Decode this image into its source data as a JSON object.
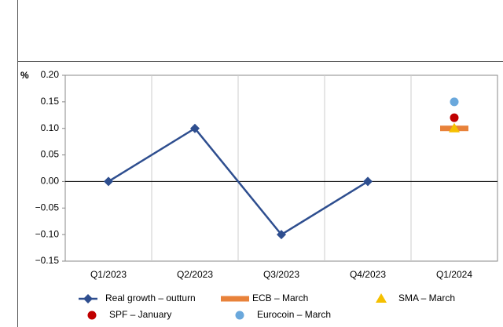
{
  "chart_data": {
    "type": "line",
    "ylabel": "%",
    "categories": [
      "Q1/2023",
      "Q2/2023",
      "Q3/2023",
      "Q4/2023",
      "Q1/2024"
    ],
    "series": [
      {
        "name": "Real growth – outturn",
        "color": "#2e4e8f",
        "marker": "diamond",
        "line": true,
        "values": [
          0,
          0.1,
          -0.1,
          0,
          null
        ]
      },
      {
        "name": "ECB – March",
        "color": "#e8823a",
        "marker": "bar",
        "line": false,
        "values": [
          null,
          null,
          null,
          null,
          0.1
        ]
      },
      {
        "name": "SMA – March",
        "color": "#f5c000",
        "marker": "triangle",
        "line": false,
        "values": [
          null,
          null,
          null,
          null,
          0.1
        ]
      },
      {
        "name": "SPF – January",
        "color": "#c00000",
        "marker": "circle",
        "line": false,
        "values": [
          null,
          null,
          null,
          null,
          0.12
        ]
      },
      {
        "name": "Eurocoin – March",
        "color": "#6aa8dc",
        "marker": "circle",
        "line": false,
        "values": [
          null,
          null,
          null,
          null,
          0.15
        ]
      }
    ],
    "ylim": [
      -0.15,
      0.2
    ],
    "yticks": [
      {
        "value": 0.2,
        "label": "0.20"
      },
      {
        "value": 0.15,
        "label": "0.15"
      },
      {
        "value": 0.1,
        "label": "0.10"
      },
      {
        "value": 0.05,
        "label": "0.05"
      },
      {
        "value": 0,
        "label": "0.00"
      },
      {
        "value": -0.05,
        "label": "−0.05"
      },
      {
        "value": -0.1,
        "label": "−0.10"
      },
      {
        "value": -0.15,
        "label": "−0.15"
      }
    ],
    "grid": false
  }
}
